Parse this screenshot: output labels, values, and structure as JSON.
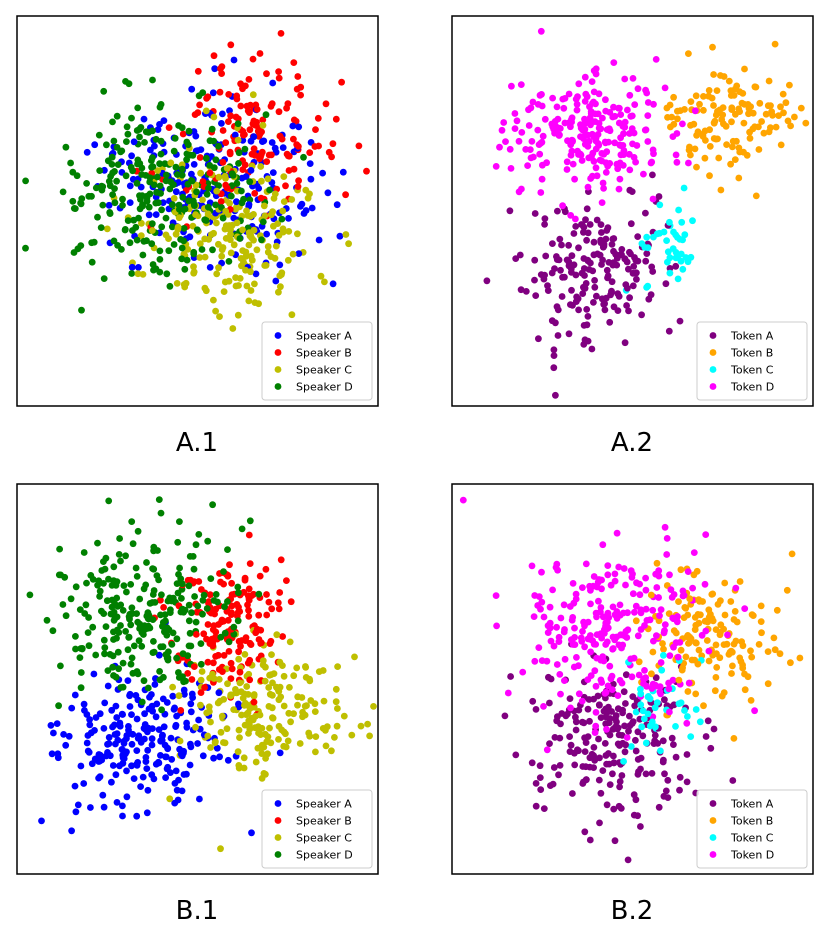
{
  "chart_data": [
    {
      "type": "scatter",
      "caption": "A.1",
      "legend_placement": "lower-right",
      "grid": false,
      "xlim": [
        -3.0,
        3.0
      ],
      "ylim": [
        -3.0,
        3.0
      ],
      "series": [
        {
          "name": "Speaker A",
          "color": "#0000ff",
          "count": 220,
          "cx": 0.28,
          "cy": 0.45,
          "sx": 0.85,
          "sy": 0.6,
          "seed": 11
        },
        {
          "name": "Speaker B",
          "color": "#ff0000",
          "count": 150,
          "cx": 0.9,
          "cy": 1.1,
          "sx": 0.65,
          "sy": 0.6,
          "seed": 23
        },
        {
          "name": "Speaker C",
          "color": "#bfbf00",
          "count": 210,
          "cx": 0.55,
          "cy": -0.25,
          "sx": 0.7,
          "sy": 0.7,
          "seed": 37
        },
        {
          "name": "Speaker D",
          "color": "#008000",
          "count": 260,
          "cx": -0.6,
          "cy": 0.3,
          "sx": 0.85,
          "sy": 0.65,
          "seed": 41
        }
      ]
    },
    {
      "type": "scatter",
      "caption": "A.2",
      "legend_placement": "lower-right",
      "grid": false,
      "xlim": [
        -3.0,
        3.0
      ],
      "ylim": [
        -3.0,
        3.0
      ],
      "series": [
        {
          "name": "Token A",
          "color": "#800080",
          "count": 190,
          "cx": -0.65,
          "cy": -0.95,
          "sx": 0.6,
          "sy": 0.55,
          "seed": 53
        },
        {
          "name": "Token B",
          "color": "#ffa500",
          "count": 130,
          "cx": 1.65,
          "cy": 1.45,
          "sx": 0.5,
          "sy": 0.42,
          "seed": 67
        },
        {
          "name": "Token C",
          "color": "#00ffff",
          "count": 40,
          "cx": 0.65,
          "cy": -0.55,
          "sx": 0.25,
          "sy": 0.38,
          "seed": 71
        },
        {
          "name": "Token D",
          "color": "#ff00ff",
          "count": 240,
          "cx": -0.7,
          "cy": 1.25,
          "sx": 0.7,
          "sy": 0.48,
          "seed": 83
        }
      ]
    },
    {
      "type": "scatter",
      "caption": "B.1",
      "legend_placement": "lower-right",
      "grid": false,
      "xlim": [
        -3.0,
        3.0
      ],
      "ylim": [
        -3.0,
        3.0
      ],
      "series": [
        {
          "name": "Speaker A",
          "color": "#0000ff",
          "count": 230,
          "cx": -1.0,
          "cy": -0.95,
          "sx": 0.7,
          "sy": 0.55,
          "seed": 97
        },
        {
          "name": "Speaker B",
          "color": "#ff0000",
          "count": 160,
          "cx": 0.6,
          "cy": 0.8,
          "sx": 0.45,
          "sy": 0.55,
          "seed": 101
        },
        {
          "name": "Speaker C",
          "color": "#bfbf00",
          "count": 200,
          "cx": 1.0,
          "cy": -0.4,
          "sx": 0.65,
          "sy": 0.55,
          "seed": 113
        },
        {
          "name": "Speaker D",
          "color": "#008000",
          "count": 260,
          "cx": -0.8,
          "cy": 1.0,
          "sx": 0.75,
          "sy": 0.6,
          "seed": 127
        }
      ]
    },
    {
      "type": "scatter",
      "caption": "B.2",
      "legend_placement": "lower-right",
      "grid": false,
      "xlim": [
        -3.0,
        3.0
      ],
      "ylim": [
        -3.0,
        3.0
      ],
      "series": [
        {
          "name": "Token A",
          "color": "#800080",
          "count": 220,
          "cx": -0.45,
          "cy": -1.0,
          "sx": 0.7,
          "sy": 0.6,
          "seed": 131
        },
        {
          "name": "Token B",
          "color": "#ffa500",
          "count": 150,
          "cx": 1.25,
          "cy": 0.6,
          "sx": 0.55,
          "sy": 0.5,
          "seed": 137
        },
        {
          "name": "Token C",
          "color": "#00ffff",
          "count": 40,
          "cx": 0.5,
          "cy": -0.45,
          "sx": 0.3,
          "sy": 0.45,
          "seed": 149
        },
        {
          "name": "Token D",
          "color": "#ff00ff",
          "count": 260,
          "cx": -0.4,
          "cy": 0.85,
          "sx": 0.75,
          "sy": 0.7,
          "seed": 151
        }
      ]
    }
  ]
}
